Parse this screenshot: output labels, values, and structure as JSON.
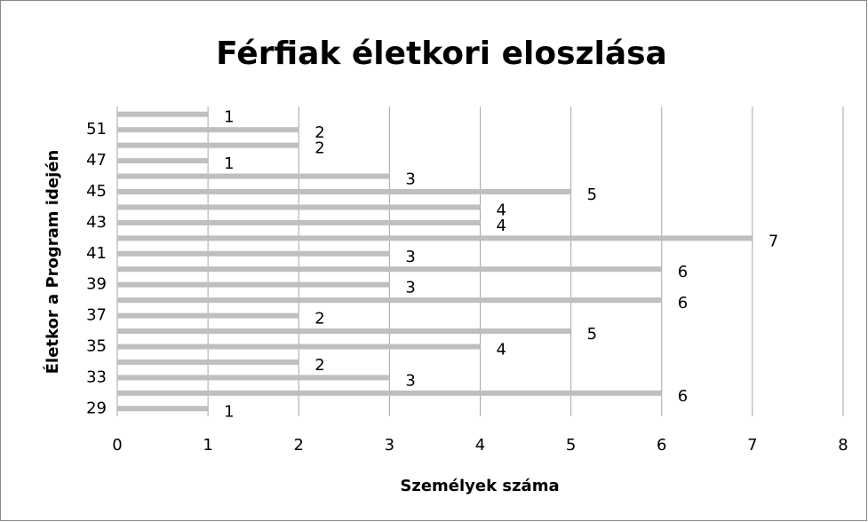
{
  "chart_data": {
    "type": "hbar",
    "title": "Férfiak életkori eloszlása",
    "x_label": "Személyek száma",
    "y_label": "Életkor a Program idején",
    "categories": [
      29,
      null,
      33,
      null,
      35,
      null,
      37,
      null,
      39,
      null,
      41,
      null,
      43,
      null,
      45,
      null,
      47,
      null,
      51,
      null
    ],
    "values": [
      1,
      6,
      3,
      2,
      4,
      5,
      2,
      6,
      3,
      6,
      3,
      7,
      4,
      4,
      5,
      3,
      1,
      2,
      2,
      1
    ],
    "color": "#bfbfbf",
    "xlim": [
      0,
      8
    ],
    "xticks": [
      0,
      1,
      2,
      3,
      4,
      5,
      6,
      7,
      8
    ],
    "grid": true
  }
}
